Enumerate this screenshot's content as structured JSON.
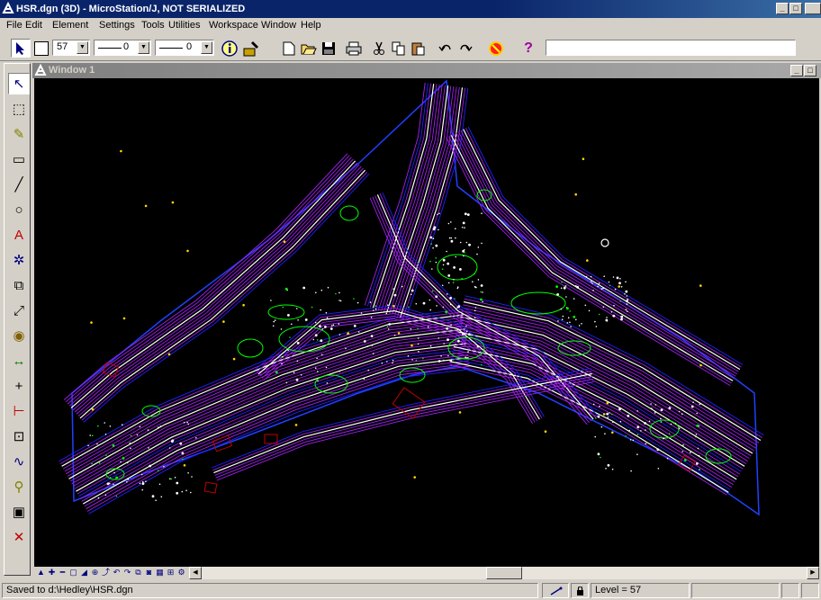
{
  "window": {
    "title": "HSR.dgn (3D) - MicroStation/J, NOT SERIALIZED",
    "minimize_label": "_",
    "maximize_label": "□"
  },
  "menu": {
    "items": [
      "File",
      "Edit",
      "Element",
      "Settings",
      "Tools",
      "Utilities",
      "Workspace",
      "Window",
      "Help"
    ]
  },
  "toolbar": {
    "color_value": "57",
    "line_style_value": "0",
    "line_weight_value": "0",
    "command_input_value": ""
  },
  "toolbox": {
    "icons": [
      "select-element-icon",
      "place-fence-icon",
      "manipulate-icon",
      "place-rectangle-icon",
      "place-line-icon",
      "place-circle-icon",
      "place-text-icon",
      "place-cell-icon",
      "copy-element-icon",
      "fit-view-icon",
      "fill-icon",
      "measure-distance-icon",
      "place-point-icon",
      "dimension-icon",
      "drop-element-icon",
      "modify-icon",
      "analyze-icon",
      "change-attributes-icon",
      "delete-element-icon"
    ]
  },
  "view": {
    "title": "Window 1",
    "minimize_label": "_",
    "maximize_label": "□"
  },
  "status": {
    "message": "Saved to d:\\Hedley\\HSR.dgn",
    "level": "Level = 57"
  },
  "colors": {
    "background": "#000000",
    "road_purple": "#a020f0",
    "road_white": "#ffffff",
    "vegetation_green": "#00ff00",
    "boundary_blue": "#2020ff",
    "building_red": "#c00000",
    "marker_yellow": "#ffd700",
    "title_active": "#0a246a"
  }
}
